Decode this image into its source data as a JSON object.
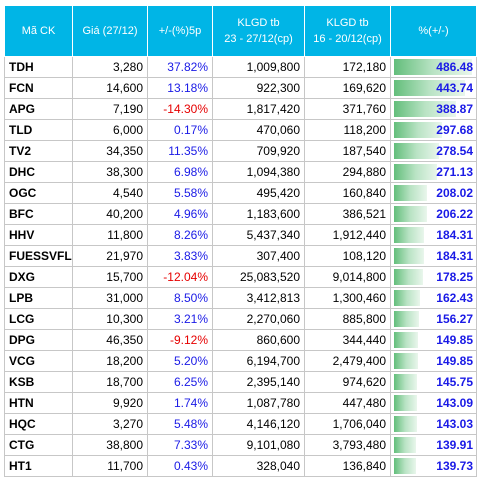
{
  "header": {
    "symbol": "Mã CK",
    "price": "Giá (27/12)",
    "change": "+/-(%)5p",
    "vol_recent_l1": "KLGD tb",
    "vol_recent_l2": "23 - 27/12(cp)",
    "vol_prev_l1": "KLGD tb",
    "vol_prev_l2": "16 - 20/12(cp)",
    "pct": "%(+/-)"
  },
  "colors": {
    "header_bg": "#00b5e6",
    "positive": "#1a1ae6",
    "negative": "#e60000",
    "bar": "#63be7b"
  },
  "rows": [
    {
      "symbol": "TDH",
      "price": "3,280",
      "change": "37.82%",
      "dir": "pos",
      "vol_recent": "1,009,800",
      "vol_prev": "172,180",
      "pct": "486.48",
      "pct_value": 486.48
    },
    {
      "symbol": "FCN",
      "price": "14,600",
      "change": "13.18%",
      "dir": "pos",
      "vol_recent": "922,300",
      "vol_prev": "169,620",
      "pct": "443.74",
      "pct_value": 443.74
    },
    {
      "symbol": "APG",
      "price": "7,190",
      "change": "-14.30%",
      "dir": "neg",
      "vol_recent": "1,817,420",
      "vol_prev": "371,760",
      "pct": "388.87",
      "pct_value": 388.87
    },
    {
      "symbol": "TLD",
      "price": "6,000",
      "change": "0.17%",
      "dir": "pos",
      "vol_recent": "470,060",
      "vol_prev": "118,200",
      "pct": "297.68",
      "pct_value": 297.68
    },
    {
      "symbol": "TV2",
      "price": "34,350",
      "change": "11.35%",
      "dir": "pos",
      "vol_recent": "709,920",
      "vol_prev": "187,540",
      "pct": "278.54",
      "pct_value": 278.54
    },
    {
      "symbol": "DHC",
      "price": "38,300",
      "change": "6.98%",
      "dir": "pos",
      "vol_recent": "1,094,380",
      "vol_prev": "294,880",
      "pct": "271.13",
      "pct_value": 271.13
    },
    {
      "symbol": "OGC",
      "price": "4,540",
      "change": "5.58%",
      "dir": "pos",
      "vol_recent": "495,420",
      "vol_prev": "160,840",
      "pct": "208.02",
      "pct_value": 208.02
    },
    {
      "symbol": "BFC",
      "price": "40,200",
      "change": "4.96%",
      "dir": "pos",
      "vol_recent": "1,183,600",
      "vol_prev": "386,521",
      "pct": "206.22",
      "pct_value": 206.22
    },
    {
      "symbol": "HHV",
      "price": "11,800",
      "change": "8.26%",
      "dir": "pos",
      "vol_recent": "5,437,340",
      "vol_prev": "1,912,440",
      "pct": "184.31",
      "pct_value": 184.31
    },
    {
      "symbol": "FUESSVFL",
      "price": "21,970",
      "change": "3.83%",
      "dir": "pos",
      "vol_recent": "307,400",
      "vol_prev": "108,120",
      "pct": "184.31",
      "pct_value": 184.31
    },
    {
      "symbol": "DXG",
      "price": "15,700",
      "change": "-12.04%",
      "dir": "neg",
      "vol_recent": "25,083,520",
      "vol_prev": "9,014,800",
      "pct": "178.25",
      "pct_value": 178.25
    },
    {
      "symbol": "LPB",
      "price": "31,000",
      "change": "8.50%",
      "dir": "pos",
      "vol_recent": "3,412,813",
      "vol_prev": "1,300,460",
      "pct": "162.43",
      "pct_value": 162.43
    },
    {
      "symbol": "LCG",
      "price": "10,300",
      "change": "3.21%",
      "dir": "pos",
      "vol_recent": "2,270,060",
      "vol_prev": "885,800",
      "pct": "156.27",
      "pct_value": 156.27
    },
    {
      "symbol": "DPG",
      "price": "46,350",
      "change": "-9.12%",
      "dir": "neg",
      "vol_recent": "860,600",
      "vol_prev": "344,440",
      "pct": "149.85",
      "pct_value": 149.85
    },
    {
      "symbol": "VCG",
      "price": "18,200",
      "change": "5.20%",
      "dir": "pos",
      "vol_recent": "6,194,700",
      "vol_prev": "2,479,400",
      "pct": "149.85",
      "pct_value": 149.85
    },
    {
      "symbol": "KSB",
      "price": "18,700",
      "change": "6.25%",
      "dir": "pos",
      "vol_recent": "2,395,140",
      "vol_prev": "974,620",
      "pct": "145.75",
      "pct_value": 145.75
    },
    {
      "symbol": "HTN",
      "price": "9,920",
      "change": "1.74%",
      "dir": "pos",
      "vol_recent": "1,087,780",
      "vol_prev": "447,480",
      "pct": "143.09",
      "pct_value": 143.09
    },
    {
      "symbol": "HQC",
      "price": "3,270",
      "change": "5.48%",
      "dir": "pos",
      "vol_recent": "4,146,120",
      "vol_prev": "1,706,040",
      "pct": "143.03",
      "pct_value": 143.03
    },
    {
      "symbol": "CTG",
      "price": "38,800",
      "change": "7.33%",
      "dir": "pos",
      "vol_recent": "9,101,080",
      "vol_prev": "3,793,480",
      "pct": "139.91",
      "pct_value": 139.91
    },
    {
      "symbol": "HT1",
      "price": "11,700",
      "change": "0.43%",
      "dir": "pos",
      "vol_recent": "328,040",
      "vol_prev": "136,840",
      "pct": "139.73",
      "pct_value": 139.73
    }
  ]
}
